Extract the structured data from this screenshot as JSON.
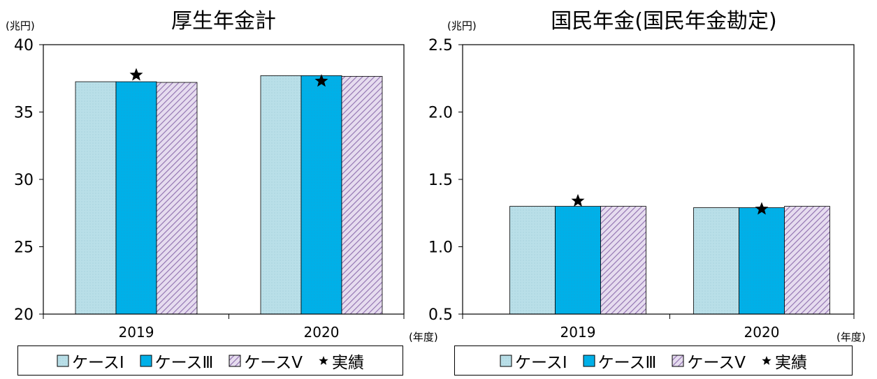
{
  "chart_data": [
    {
      "type": "bar",
      "title": "厚生年金計",
      "ylabel": "(兆円)",
      "xlabel": "(年度)",
      "categories": [
        "2019",
        "2020"
      ],
      "ylim": [
        20,
        40
      ],
      "yticks": [
        "20",
        "25",
        "30",
        "35",
        "40"
      ],
      "series": [
        {
          "name": "ケースⅠ",
          "values": [
            37.25,
            37.7
          ],
          "color": "#b9dfe8",
          "pattern": "dots"
        },
        {
          "name": "ケースⅢ",
          "values": [
            37.25,
            37.7
          ],
          "color": "#00b0e8",
          "pattern": "solid"
        },
        {
          "name": "ケースⅤ",
          "values": [
            37.2,
            37.65
          ],
          "color": "#c9b6d8",
          "pattern": "hatch"
        }
      ],
      "actual": {
        "name": "実績",
        "values": [
          37.75,
          37.3
        ]
      },
      "legend": "bottom",
      "grid": false
    },
    {
      "type": "bar",
      "title": "国民年金(国民年金勘定)",
      "ylabel": "(兆円)",
      "xlabel": "(年度)",
      "categories": [
        "2019",
        "2020"
      ],
      "ylim": [
        0.5,
        2.5
      ],
      "yticks": [
        "0.5",
        "1.0",
        "1.5",
        "2.0",
        "2.5"
      ],
      "series": [
        {
          "name": "ケースⅠ",
          "values": [
            1.3,
            1.29
          ],
          "color": "#b9dfe8",
          "pattern": "dots"
        },
        {
          "name": "ケースⅢ",
          "values": [
            1.3,
            1.29
          ],
          "color": "#00b0e8",
          "pattern": "solid"
        },
        {
          "name": "ケースⅤ",
          "values": [
            1.3,
            1.3
          ],
          "color": "#c9b6d8",
          "pattern": "hatch"
        }
      ],
      "actual": {
        "name": "実績",
        "values": [
          1.34,
          1.28
        ]
      },
      "legend": "bottom",
      "grid": false
    }
  ],
  "legend": {
    "items": [
      {
        "label": "ケースⅠ",
        "icon": "case-1-swatch"
      },
      {
        "label": "ケースⅢ",
        "icon": "case-3-swatch"
      },
      {
        "label": "ケースⅤ",
        "icon": "case-5-swatch"
      },
      {
        "label": "実績",
        "icon": "star-icon"
      }
    ]
  }
}
